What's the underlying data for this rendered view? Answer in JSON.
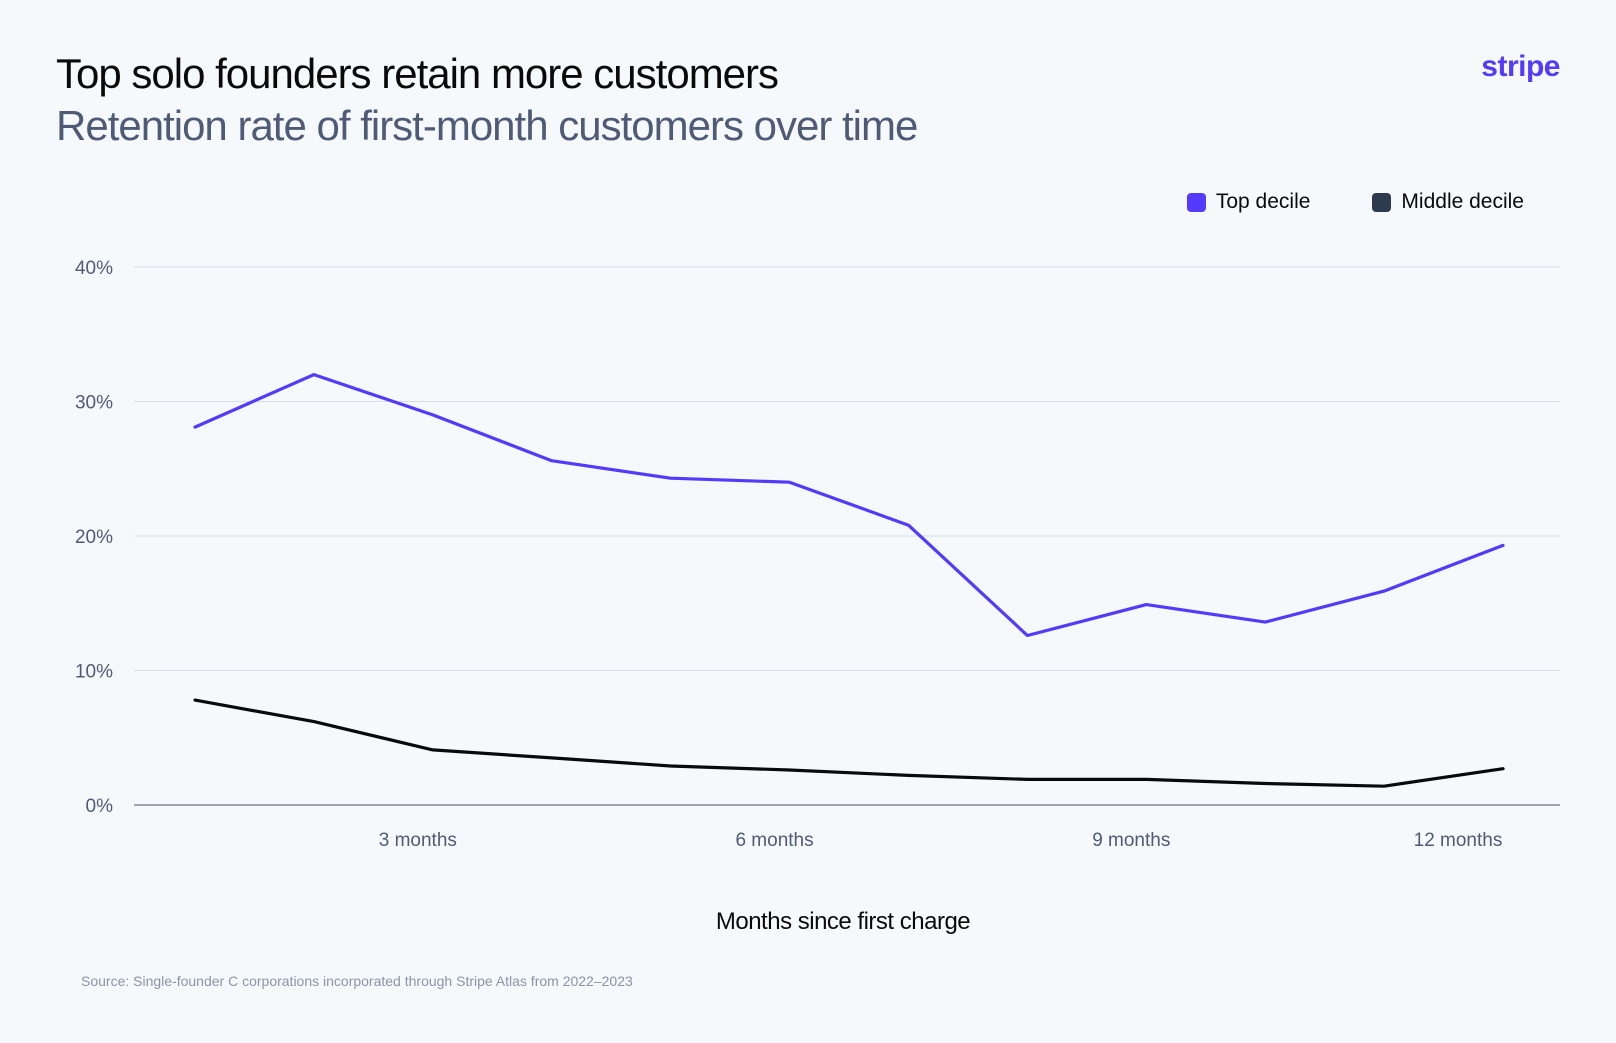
{
  "header": {
    "title": "Top solo founders retain more customers",
    "subtitle": "Retention rate of first-month customers over time",
    "logo_text": "stripe"
  },
  "colors": {
    "brand": "#533afd",
    "top_decile": "#533afd",
    "middle_decile": "#0a0a0a",
    "middle_decile_swatch": "#2e3a4d",
    "grid": "#d7dde6",
    "axis": "#6b7280",
    "tick_text": "#4f5b76"
  },
  "chart_data": {
    "type": "line",
    "title": "Top solo founders retain more customers",
    "subtitle": "Retention rate of first-month customers over time",
    "xlabel": "Months since first charge",
    "ylabel": "",
    "x": [
      1,
      2,
      3,
      4,
      5,
      6,
      7,
      8,
      9,
      10,
      11,
      12
    ],
    "xticks": [
      {
        "value": 3,
        "label": "3 months"
      },
      {
        "value": 6,
        "label": "6 months"
      },
      {
        "value": 9,
        "label": "9 months"
      },
      {
        "value": 12,
        "label": "12 months"
      }
    ],
    "yticks": [
      {
        "value": 0,
        "label": "0%"
      },
      {
        "value": 10,
        "label": "10%"
      },
      {
        "value": 20,
        "label": "20%"
      },
      {
        "value": 30,
        "label": "30%"
      },
      {
        "value": 40,
        "label": "40%"
      }
    ],
    "ylim": [
      0,
      40
    ],
    "grid": true,
    "legend_position": "top-right",
    "series": [
      {
        "name": "Top decile",
        "color": "#533afd",
        "values": [
          28.1,
          32.0,
          29.0,
          25.6,
          24.3,
          24.0,
          20.8,
          12.6,
          14.9,
          13.6,
          15.9,
          19.3
        ]
      },
      {
        "name": "Middle decile",
        "color": "#0a0a0a",
        "values": [
          7.8,
          6.2,
          4.1,
          3.5,
          2.9,
          2.6,
          2.2,
          1.9,
          1.9,
          1.6,
          1.4,
          2.7
        ]
      }
    ]
  },
  "footer": {
    "source": "Source: Single-founder C corporations incorporated through Stripe Atlas from 2022–2023"
  }
}
